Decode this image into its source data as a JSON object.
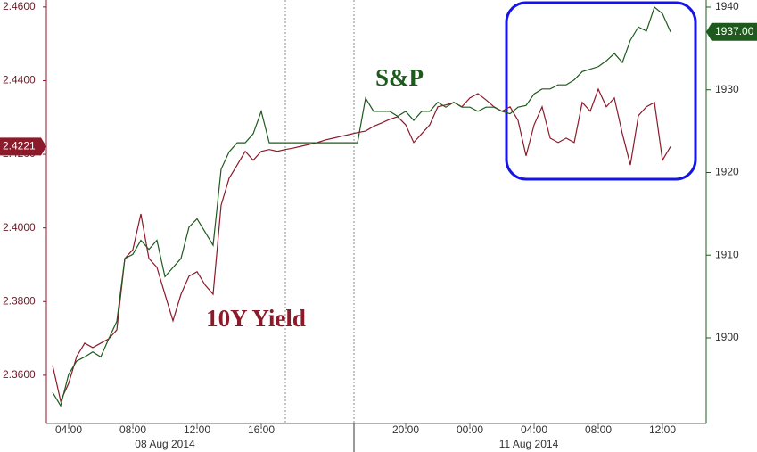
{
  "chart_data": {
    "type": "line",
    "categories": [
      null,
      null,
      "04:00",
      null,
      null,
      null,
      null,
      null,
      null,
      null,
      "08:00",
      null,
      null,
      null,
      null,
      null,
      null,
      null,
      "12:00",
      null,
      null,
      null,
      null,
      null,
      null,
      null,
      "16:00",
      null,
      null,
      null,
      null,
      null,
      null,
      null,
      null,
      null,
      null,
      null,
      null,
      null,
      null,
      null,
      null,
      null,
      "20:00",
      null,
      null,
      null,
      null,
      null,
      null,
      null,
      "00:00",
      null,
      null,
      null,
      null,
      null,
      null,
      null,
      "04:00",
      null,
      null,
      null,
      null,
      null,
      null,
      null,
      "08:00",
      null,
      null,
      null,
      null,
      null,
      null,
      null,
      "12:00",
      null
    ],
    "x_group_labels": [
      "08 Aug 2014",
      "11 Aug 2014"
    ],
    "series": [
      {
        "name": "10Y Yield",
        "color": "#8b1a2a",
        "axis": "y",
        "last_label": {
          "value": 2.4221,
          "label": "2.4221"
        },
        "values": [
          2.3627,
          2.353,
          2.3578,
          2.3651,
          2.3687,
          2.3675,
          2.3687,
          2.3699,
          2.3723,
          2.3917,
          2.3941,
          2.4038,
          2.3917,
          2.3893,
          2.382,
          2.3748,
          2.382,
          2.3869,
          2.3881,
          2.3845,
          2.382,
          2.4062,
          2.4135,
          2.4171,
          2.4208,
          2.4184,
          2.4208,
          2.4213,
          2.4208,
          2.4213,
          2.4217,
          2.4222,
          2.4227,
          2.4232,
          2.4239,
          2.4244,
          2.4249,
          2.4254,
          2.4259,
          2.4263,
          2.4276,
          2.4285,
          2.4295,
          2.4302,
          2.428,
          2.4232,
          2.4256,
          2.428,
          2.4329,
          2.4334,
          2.4341,
          2.4329,
          2.4353,
          2.4365,
          2.4348,
          2.4329,
          2.4317,
          2.4329,
          2.4292,
          2.4196,
          2.428,
          2.4329,
          2.4244,
          2.4232,
          2.4244,
          2.4232,
          2.4341,
          2.4317,
          2.4377,
          2.4329,
          2.4353,
          2.4256,
          2.4171,
          2.4305,
          2.4329,
          2.4341,
          2.4184,
          2.4221
        ]
      },
      {
        "name": "S&P",
        "color": "#1e5a1e",
        "axis": "y2",
        "last_label": {
          "value": 1937.0,
          "label": "1937.00"
        },
        "values": [
          1893.4,
          1891.8,
          1895.6,
          1897.2,
          1897.7,
          1898.3,
          1897.7,
          1899.9,
          1902.0,
          1909.6,
          1910.1,
          1911.8,
          1910.7,
          1911.8,
          1907.4,
          1908.5,
          1909.6,
          1913.4,
          1914.4,
          1912.8,
          1911.2,
          1920.4,
          1922.5,
          1923.6,
          1923.6,
          1924.7,
          1927.4,
          1923.6,
          1923.6,
          1923.6,
          1923.6,
          1923.6,
          1923.6,
          1923.6,
          1923.6,
          1923.6,
          1923.6,
          1923.6,
          1923.6,
          1929.0,
          1927.4,
          1927.4,
          1927.4,
          1926.8,
          1927.4,
          1926.3,
          1927.4,
          1927.4,
          1928.5,
          1927.9,
          1928.5,
          1927.9,
          1927.9,
          1927.4,
          1927.9,
          1927.9,
          1927.4,
          1927.1,
          1927.9,
          1928.1,
          1929.5,
          1930.1,
          1930.1,
          1930.6,
          1930.6,
          1931.2,
          1932.2,
          1932.5,
          1932.8,
          1933.5,
          1934.4,
          1933.3,
          1936.0,
          1937.6,
          1937.1,
          1940.0,
          1939.2,
          1937.0
        ]
      }
    ],
    "ylim": [
      2.3469,
      2.4619
    ],
    "yticks": [
      {
        "value": 2.36,
        "label": "2.3600"
      },
      {
        "value": 2.38,
        "label": "2.3800"
      },
      {
        "value": 2.4,
        "label": "2.4000"
      },
      {
        "value": 2.42,
        "label": "2.4200"
      },
      {
        "value": 2.44,
        "label": "2.4400"
      },
      {
        "value": 2.46,
        "label": "2.4600"
      }
    ],
    "y2lim": [
      1889.65,
      1940.86
    ],
    "y2ticks": [
      1900,
      1910,
      1920,
      1930,
      1940
    ],
    "grid": false
  }
}
